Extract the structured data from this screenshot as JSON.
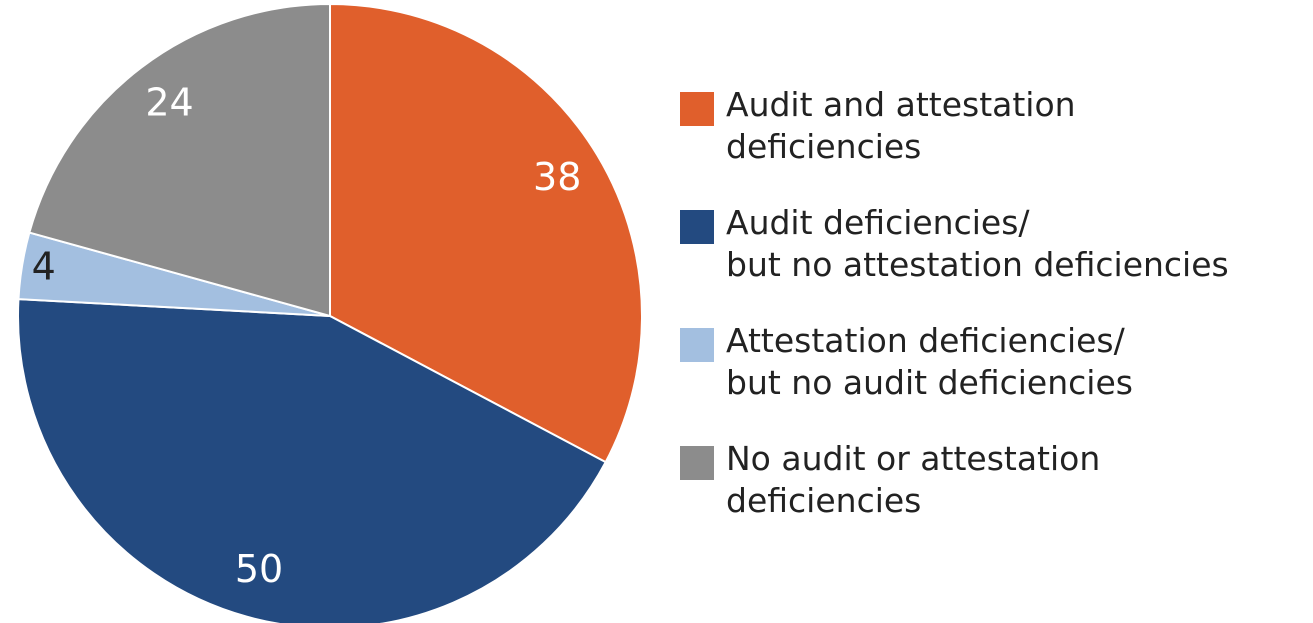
{
  "chart_data": {
    "type": "pie",
    "categories": [
      "Audit and attestation\ndeficiencies",
      "Audit deficiencies/\nbut no attestation deficiencies",
      "Attestation deficiencies/\nbut no audit deficiencies",
      "No audit or attestation\ndeficiencies"
    ],
    "values": [
      38,
      50,
      4,
      24
    ],
    "colors": [
      "#e05f2c",
      "#234a80",
      "#a3bfe0",
      "#8c8c8c"
    ],
    "label_colors": [
      "#ffffff",
      "#ffffff",
      "#222222",
      "#ffffff"
    ],
    "legend": "right"
  }
}
